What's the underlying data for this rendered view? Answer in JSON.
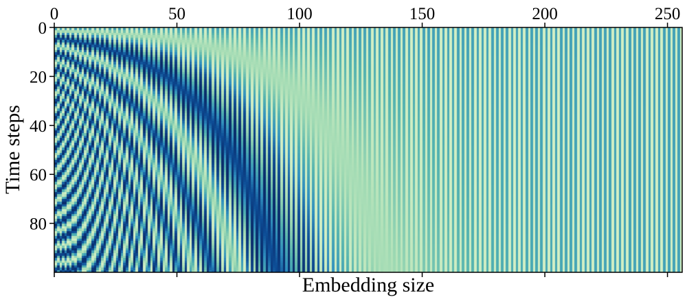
{
  "chart_data": {
    "type": "heatmap",
    "title": "",
    "xlabel": "Embedding size",
    "ylabel": "Time steps",
    "rows": 100,
    "cols": 256,
    "xlim": [
      0,
      256
    ],
    "ylim": [
      0,
      100
    ],
    "y_inverted": true,
    "x_ticks": [
      0,
      50,
      100,
      150,
      200,
      250
    ],
    "x_tick_labels": [
      "0",
      "50",
      "100",
      "150",
      "200",
      "250"
    ],
    "x_tick_position": "top",
    "y_ticks": [
      0,
      20,
      40,
      60,
      80
    ],
    "y_tick_labels": [
      "0",
      "20",
      "40",
      "60",
      "80"
    ],
    "encoding": "sinusoidal positional encoding: sin on even columns, cos on odd columns",
    "colormap": "GnBu",
    "colormap_stops": [
      "#0a2c6b",
      "#0d4d96",
      "#2f8fbf",
      "#53b3b0",
      "#9bd8b2",
      "#d3efc4"
    ],
    "value_range": [
      -1,
      1
    ],
    "colorbar": false,
    "grid": false
  }
}
